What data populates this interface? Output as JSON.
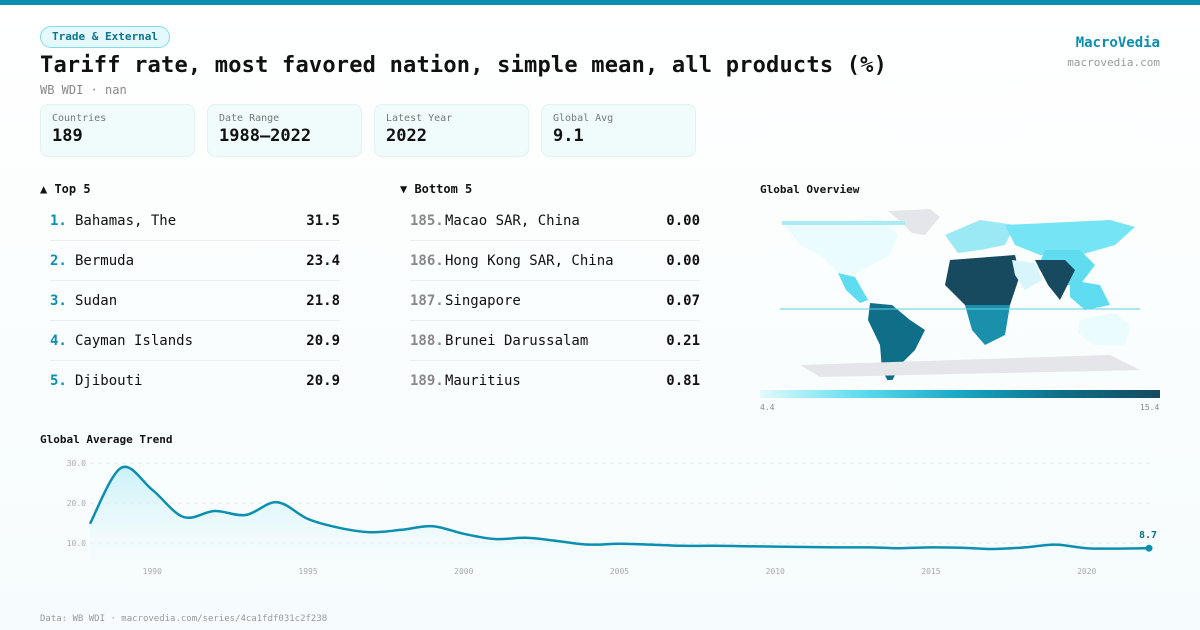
{
  "category": "Trade & External",
  "title": "Tariff rate, most favored nation, simple mean, all products (%)",
  "subtitle": "WB WDI · nan",
  "brand": {
    "name": "MacroVedia",
    "url": "macrovedia.com"
  },
  "stats": [
    {
      "label": "Countries",
      "value": "189"
    },
    {
      "label": "Date Range",
      "value": "1988–2022"
    },
    {
      "label": "Latest Year",
      "value": "2022"
    },
    {
      "label": "Global Avg",
      "value": "9.1"
    }
  ],
  "top": {
    "heading": "▲ Top 5",
    "items": [
      {
        "rank": "1.",
        "name": "Bahamas, The",
        "value": "31.5"
      },
      {
        "rank": "2.",
        "name": "Bermuda",
        "value": "23.4"
      },
      {
        "rank": "3.",
        "name": "Sudan",
        "value": "21.8"
      },
      {
        "rank": "4.",
        "name": "Cayman Islands",
        "value": "20.9"
      },
      {
        "rank": "5.",
        "name": "Djibouti",
        "value": "20.9"
      }
    ]
  },
  "bottom": {
    "heading": "▼ Bottom 5",
    "items": [
      {
        "rank": "185.",
        "name": "Macao SAR, China",
        "value": "0.00"
      },
      {
        "rank": "186.",
        "name": "Hong Kong SAR, China",
        "value": "0.00"
      },
      {
        "rank": "187.",
        "name": "Singapore",
        "value": "0.07"
      },
      {
        "rank": "188.",
        "name": "Brunei Darussalam",
        "value": "0.21"
      },
      {
        "rank": "189.",
        "name": "Mauritius",
        "value": "0.81"
      }
    ]
  },
  "map": {
    "heading": "Global Overview",
    "legend_min": "4.4",
    "legend_max": "15.4",
    "colors": {
      "low": "#e3fafd",
      "mid": "#19a8c3",
      "high": "#174a5e",
      "nodata": "#e4e6ea"
    }
  },
  "chart_data": {
    "type": "area",
    "title": "Global Average Trend",
    "x": [
      1988,
      1989,
      1990,
      1991,
      1992,
      1993,
      1994,
      1995,
      1996,
      1997,
      1998,
      1999,
      2000,
      2001,
      2002,
      2003,
      2004,
      2005,
      2006,
      2007,
      2008,
      2009,
      2010,
      2011,
      2012,
      2013,
      2014,
      2015,
      2016,
      2017,
      2018,
      2019,
      2020,
      2021,
      2022
    ],
    "values": [
      14.8,
      28.8,
      23.3,
      16.5,
      18.0,
      17.0,
      20.2,
      16.0,
      13.8,
      12.7,
      13.3,
      14.2,
      12.3,
      11.0,
      11.3,
      10.5,
      9.6,
      9.8,
      9.6,
      9.3,
      9.3,
      9.2,
      9.1,
      9.0,
      8.9,
      8.9,
      8.7,
      8.9,
      8.8,
      8.5,
      8.9,
      9.6,
      8.7,
      8.6,
      8.7
    ],
    "xticks": [
      1990,
      1995,
      2000,
      2005,
      2010,
      2015,
      2020
    ],
    "yticks": [
      "10.0",
      "20.0",
      "30.0"
    ],
    "ylim": [
      5,
      31
    ],
    "end_label": "8.7",
    "color": "#0b8fb0",
    "grid": true
  },
  "footer": "Data: WB WDI · macrovedia.com/series/4ca1fdf031c2f238"
}
